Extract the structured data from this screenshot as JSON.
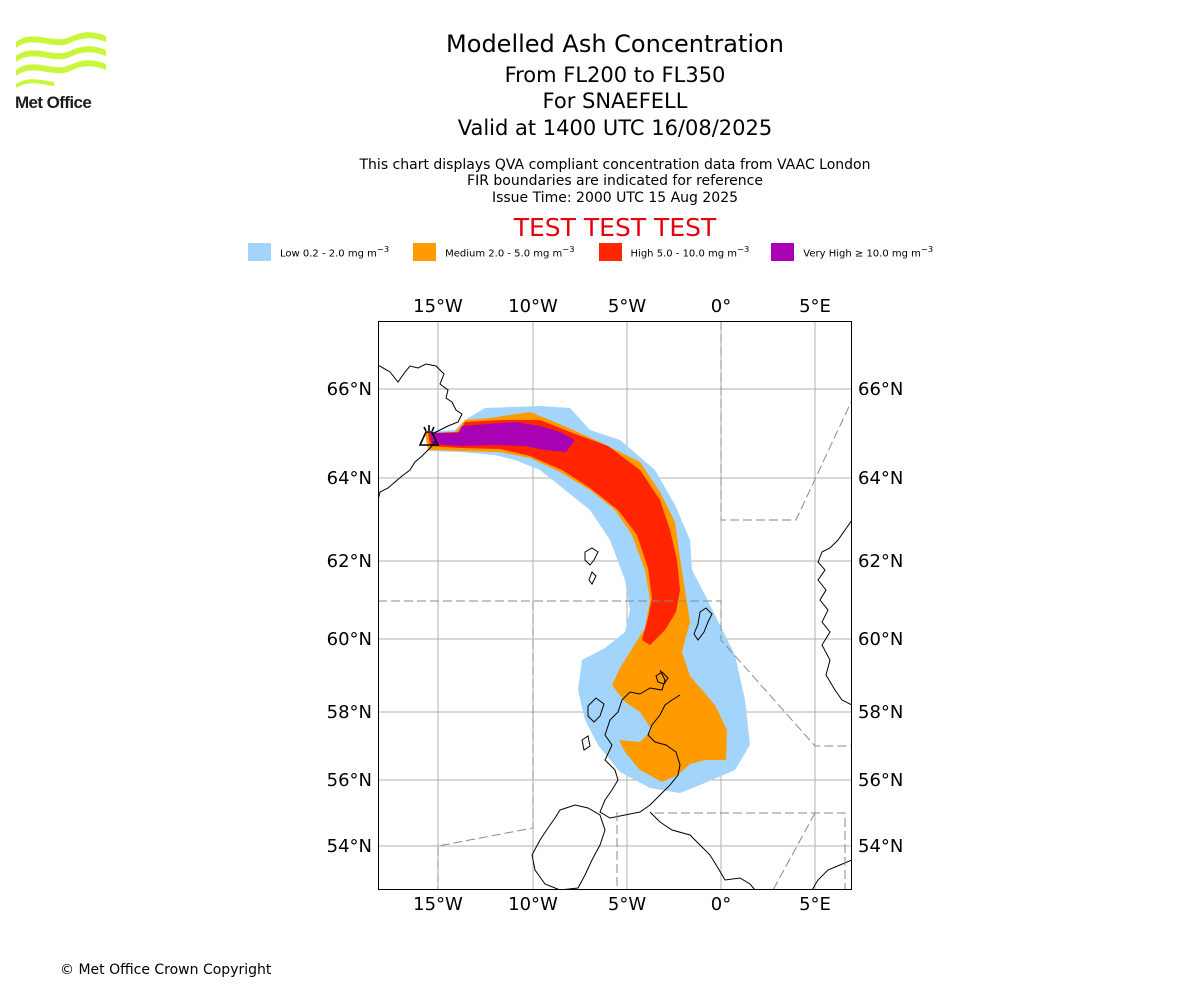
{
  "logo": {
    "text": "Met Office",
    "wave_color": "#c8f73a"
  },
  "header": {
    "title": "Modelled Ash Concentration",
    "level_range": "From FL200 to FL350",
    "volcano": "For SNAEFELL",
    "valid_time": "Valid at 1400 UTC 16/08/2025",
    "note_1": "This chart displays QVA compliant concentration data from VAAC London",
    "note_2": "FIR boundaries are indicated for reference",
    "issue_time": "Issue Time: 2000 UTC 15 Aug 2025",
    "test_banner": "TEST TEST TEST"
  },
  "legend": [
    {
      "label": "Low 0.2 - 2.0 mg m",
      "color": "#a3d4fb"
    },
    {
      "label": "Medium 2.0 - 5.0 mg m",
      "color": "#ff9a00"
    },
    {
      "label": "High 5.0 - 10.0 mg m",
      "color": "#ff2500"
    },
    {
      "label": "Very High ≥ 10.0 mg m",
      "color": "#a702b4"
    }
  ],
  "legend_unit_exponent": "−3",
  "map": {
    "lon_labels": [
      "15°W",
      "10°W",
      "5°W",
      "0°",
      "5°E"
    ],
    "lat_labels": [
      "66°N",
      "64°N",
      "62°N",
      "60°N",
      "58°N",
      "56°N",
      "54°N"
    ]
  },
  "footer": {
    "copyright": "© Met Office Crown Copyright"
  }
}
